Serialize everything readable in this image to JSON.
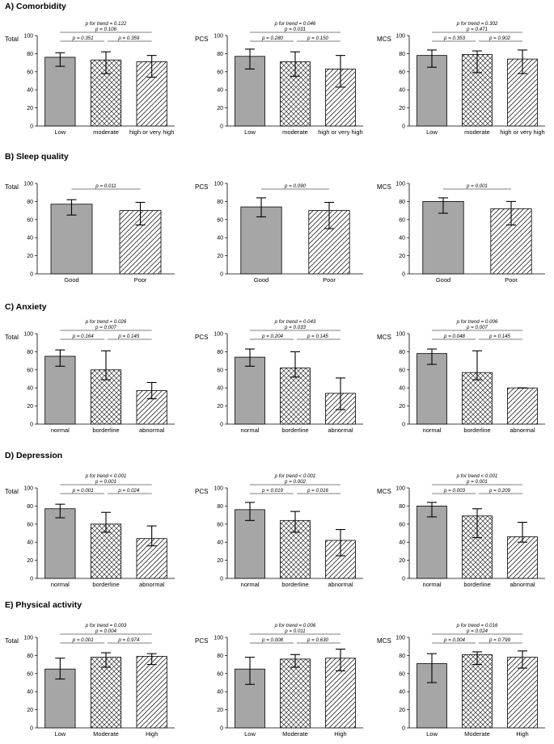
{
  "colors": {
    "solid_bar": "#a6a6a6",
    "axis": "#000000",
    "hatch": "#000000"
  },
  "sections": [
    {
      "title": "A) Comorbidity",
      "categories": [
        "Low",
        "moderate",
        "high or very high"
      ],
      "patterns": [
        "solid",
        "cross",
        "diag"
      ],
      "panels": [
        {
          "ylabel": "Total",
          "ylim": [
            0,
            100
          ],
          "ticks": [
            0,
            20,
            40,
            60,
            80,
            100
          ],
          "values": [
            76,
            73,
            71
          ],
          "err_low": [
            66,
            58,
            54
          ],
          "err_high": [
            81,
            82,
            78
          ],
          "annotations": {
            "trend": "p for trend = 0.122",
            "p13": "p = 0.106",
            "p12": "p = 0.351",
            "p23": "p = 0.359"
          }
        },
        {
          "ylabel": "PCS",
          "ylim": [
            0,
            100
          ],
          "ticks": [
            0,
            20,
            40,
            60,
            80,
            100
          ],
          "values": [
            77,
            71,
            63
          ],
          "err_low": [
            63,
            55,
            43
          ],
          "err_high": [
            85,
            82,
            78
          ],
          "annotations": {
            "trend": "p for trend = 0.046",
            "p13": "p = 0.031",
            "p12": "p = 0.280",
            "p23": "p = 0.150"
          }
        },
        {
          "ylabel": "MCS",
          "ylim": [
            0,
            100
          ],
          "ticks": [
            0,
            20,
            40,
            60,
            80,
            100
          ],
          "values": [
            78,
            79,
            74
          ],
          "err_low": [
            65,
            59,
            58
          ],
          "err_high": [
            84,
            83,
            84
          ],
          "annotations": {
            "trend": "p for trend = 0.302",
            "p13": "p = 0.471",
            "p12": "p = 0.353",
            "p23": "p = 0.902"
          }
        }
      ]
    },
    {
      "title": "B) Sleep quality",
      "categories": [
        "Good",
        "Poor"
      ],
      "patterns": [
        "solid",
        "diag"
      ],
      "panels": [
        {
          "ylabel": "Total",
          "ylim": [
            0,
            100
          ],
          "ticks": [
            0,
            20,
            40,
            60,
            80,
            100
          ],
          "values": [
            77,
            70
          ],
          "err_low": [
            65,
            54
          ],
          "err_high": [
            82,
            79
          ],
          "annotations": {
            "p12": "p = 0.011"
          }
        },
        {
          "ylabel": "PCS",
          "ylim": [
            0,
            100
          ],
          "ticks": [
            0,
            20,
            40,
            60,
            80,
            100
          ],
          "values": [
            74,
            70
          ],
          "err_low": [
            63,
            50
          ],
          "err_high": [
            84,
            79
          ],
          "annotations": {
            "p12": "p = 0.090"
          }
        },
        {
          "ylabel": "MCS",
          "ylim": [
            0,
            100
          ],
          "ticks": [
            0,
            20,
            40,
            60,
            80,
            100
          ],
          "values": [
            80,
            72
          ],
          "err_low": [
            67,
            54
          ],
          "err_high": [
            84,
            80
          ],
          "annotations": {
            "p12": "p = 0.001"
          }
        }
      ]
    },
    {
      "title": "C) Anxiety",
      "categories": [
        "normal",
        "borderline",
        "abnormal"
      ],
      "patterns": [
        "solid",
        "cross",
        "diag"
      ],
      "panels": [
        {
          "ylabel": "Total",
          "ylim": [
            0,
            100
          ],
          "ticks": [
            0,
            20,
            40,
            60,
            80,
            100
          ],
          "values": [
            75,
            60,
            37
          ],
          "err_low": [
            64,
            49,
            28
          ],
          "err_high": [
            82,
            81,
            46
          ],
          "annotations": {
            "trend": "p for trend = 0.026",
            "p13": "p = 0.007",
            "p12": "p = 0.164",
            "p23": "p = 0.145"
          }
        },
        {
          "ylabel": "PCS",
          "ylim": [
            0,
            100
          ],
          "ticks": [
            0,
            20,
            40,
            60,
            80,
            100
          ],
          "values": [
            74,
            62,
            34
          ],
          "err_low": [
            64,
            52,
            16
          ],
          "err_high": [
            83,
            80,
            51
          ],
          "annotations": {
            "trend": "p for trend = 0.043",
            "p13": "p = 0.033",
            "p12": "p = 0.204",
            "p23": "p = 0.145"
          }
        },
        {
          "ylabel": "MCS",
          "ylim": [
            0,
            100
          ],
          "ticks": [
            0,
            20,
            40,
            60,
            80,
            100
          ],
          "values": [
            78,
            57,
            40
          ],
          "err_low": [
            66,
            49,
            40
          ],
          "err_high": [
            83,
            81,
            40
          ],
          "annotations": {
            "trend": "p for trend = 0.006",
            "p13": "p = 0.007",
            "p12": "p = 0.048",
            "p23": "p = 0.145"
          }
        }
      ]
    },
    {
      "title": "D) Depression",
      "categories": [
        "normal",
        "borderline",
        "abnormal"
      ],
      "patterns": [
        "solid",
        "cross",
        "diag"
      ],
      "panels": [
        {
          "ylabel": "Total",
          "ylim": [
            0,
            100
          ],
          "ticks": [
            0,
            20,
            40,
            60,
            80,
            100
          ],
          "values": [
            77,
            60,
            44
          ],
          "err_low": [
            67,
            51,
            36
          ],
          "err_high": [
            82,
            73,
            58
          ],
          "annotations": {
            "trend": "p for trend < 0.001",
            "p13": "p = 0.001",
            "p12": "p = 0.001",
            "p23": "p = 0.024"
          }
        },
        {
          "ylabel": "PCS",
          "ylim": [
            0,
            100
          ],
          "ticks": [
            0,
            20,
            40,
            60,
            80,
            100
          ],
          "values": [
            76,
            64,
            42
          ],
          "err_low": [
            64,
            51,
            25
          ],
          "err_high": [
            84,
            74,
            54
          ],
          "annotations": {
            "trend": "p for trend < 0.001",
            "p13": "p = 0.002",
            "p12": "p = 0.019",
            "p23": "p = 0.016"
          }
        },
        {
          "ylabel": "MCS",
          "ylim": [
            0,
            100
          ],
          "ticks": [
            0,
            20,
            40,
            60,
            80,
            100
          ],
          "values": [
            80,
            69,
            46
          ],
          "err_low": [
            68,
            45,
            40
          ],
          "err_high": [
            84,
            77,
            62
          ],
          "annotations": {
            "trend": "p for trend < 0.001",
            "p13": "p = 0.001",
            "p12": "p = 0.003",
            "p23": "p = 0.209"
          }
        }
      ]
    },
    {
      "title": "E) Physical activity",
      "categories": [
        "Low",
        "Moderate",
        "High"
      ],
      "patterns": [
        "solid",
        "cross",
        "diag"
      ],
      "panels": [
        {
          "ylabel": "Total",
          "ylim": [
            0,
            100
          ],
          "ticks": [
            0,
            20,
            40,
            60,
            80,
            100
          ],
          "values": [
            65,
            78,
            79
          ],
          "err_low": [
            54,
            67,
            70
          ],
          "err_high": [
            77,
            83,
            82
          ],
          "annotations": {
            "trend": "p for trend = 0.003",
            "p13": "p = 0.004",
            "p12": "p = 0.001",
            "p23": "p = 0.974"
          }
        },
        {
          "ylabel": "PCS",
          "ylim": [
            0,
            100
          ],
          "ticks": [
            0,
            20,
            40,
            60,
            80,
            100
          ],
          "values": [
            65,
            76,
            77
          ],
          "err_low": [
            48,
            67,
            63
          ],
          "err_high": [
            78,
            81,
            87
          ],
          "annotations": {
            "trend": "p for trend = 0.006",
            "p13": "p = 0.011",
            "p12": "p = 0.008",
            "p23": "p = 0.630"
          }
        },
        {
          "ylabel": "MCS",
          "ylim": [
            0,
            100
          ],
          "ticks": [
            0,
            20,
            40,
            60,
            80,
            100
          ],
          "values": [
            71,
            81,
            78
          ],
          "err_low": [
            50,
            70,
            66
          ],
          "err_high": [
            82,
            84,
            85
          ],
          "annotations": {
            "trend": "p for trend = 0.016",
            "p13": "p = 0.024",
            "p12": "p = 0.004",
            "p23": "p = 0.799"
          }
        }
      ]
    }
  ],
  "chart_data": [
    {
      "type": "bar",
      "title": "A) Comorbidity",
      "categories": [
        "Low",
        "moderate",
        "high or very high"
      ],
      "series": [
        {
          "name": "Total",
          "values": [
            76,
            73,
            71
          ]
        },
        {
          "name": "PCS",
          "values": [
            77,
            71,
            63
          ]
        },
        {
          "name": "MCS",
          "values": [
            78,
            79,
            74
          ]
        }
      ],
      "ylim": [
        0,
        100
      ]
    },
    {
      "type": "bar",
      "title": "B) Sleep quality",
      "categories": [
        "Good",
        "Poor"
      ],
      "series": [
        {
          "name": "Total",
          "values": [
            77,
            70
          ]
        },
        {
          "name": "PCS",
          "values": [
            74,
            70
          ]
        },
        {
          "name": "MCS",
          "values": [
            80,
            72
          ]
        }
      ],
      "ylim": [
        0,
        100
      ]
    },
    {
      "type": "bar",
      "title": "C) Anxiety",
      "categories": [
        "normal",
        "borderline",
        "abnormal"
      ],
      "series": [
        {
          "name": "Total",
          "values": [
            75,
            60,
            37
          ]
        },
        {
          "name": "PCS",
          "values": [
            74,
            62,
            34
          ]
        },
        {
          "name": "MCS",
          "values": [
            78,
            57,
            40
          ]
        }
      ],
      "ylim": [
        0,
        100
      ]
    },
    {
      "type": "bar",
      "title": "D) Depression",
      "categories": [
        "normal",
        "borderline",
        "abnormal"
      ],
      "series": [
        {
          "name": "Total",
          "values": [
            77,
            60,
            44
          ]
        },
        {
          "name": "PCS",
          "values": [
            76,
            64,
            42
          ]
        },
        {
          "name": "MCS",
          "values": [
            80,
            69,
            46
          ]
        }
      ],
      "ylim": [
        0,
        100
      ]
    },
    {
      "type": "bar",
      "title": "E) Physical activity",
      "categories": [
        "Low",
        "Moderate",
        "High"
      ],
      "series": [
        {
          "name": "Total",
          "values": [
            65,
            78,
            79
          ]
        },
        {
          "name": "PCS",
          "values": [
            65,
            76,
            77
          ]
        },
        {
          "name": "MCS",
          "values": [
            71,
            81,
            78
          ]
        }
      ],
      "ylim": [
        0,
        100
      ]
    }
  ]
}
